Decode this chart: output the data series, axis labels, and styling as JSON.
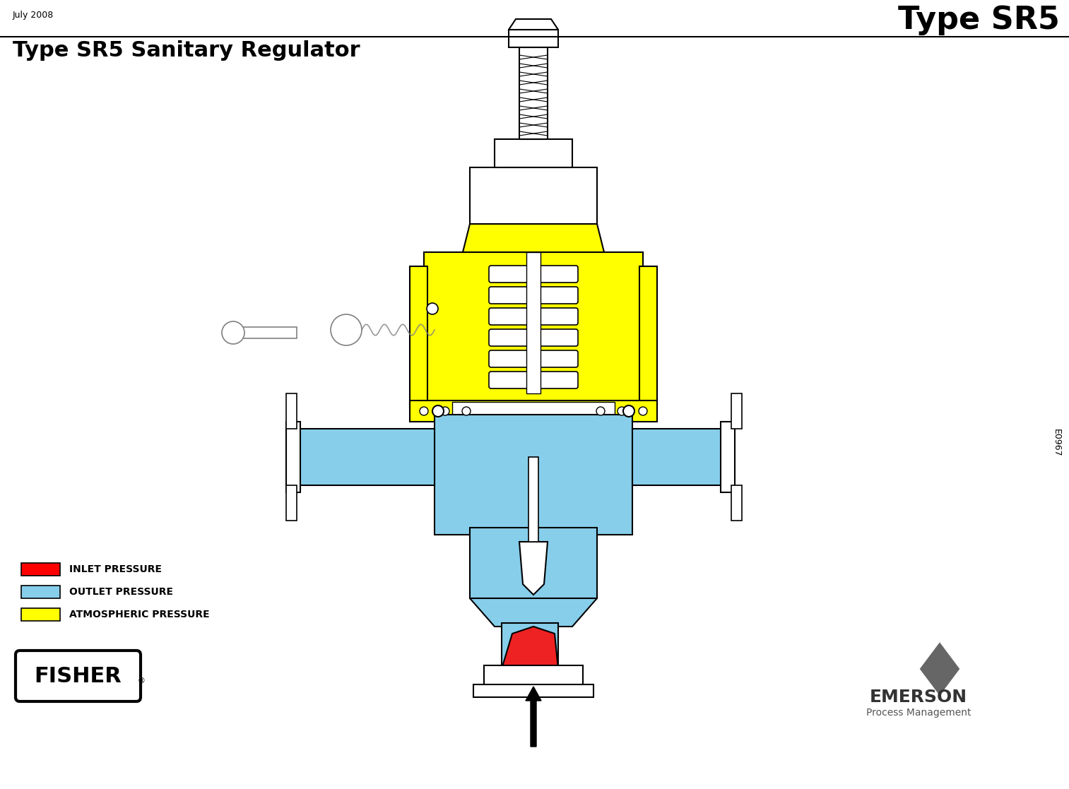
{
  "title_main": "Type SR5",
  "title_sub": "Type SR5 Sanitary Regulator",
  "date_text": "July 2008",
  "doc_number": "E0967",
  "legend": [
    {
      "label": "INLET PRESSURE",
      "color": "#FF0000"
    },
    {
      "label": "OUTLET PRESSURE",
      "color": "#87CEEB"
    },
    {
      "label": "ATMOSPHERIC PRESSURE",
      "color": "#FFFF00"
    }
  ],
  "bg_color": "#FFFFFF",
  "border_color": "#000000",
  "line_color": "#000000",
  "yellow_color": "#FFFF00",
  "blue_color": "#87CEEB",
  "red_color": "#EE2222",
  "gray_color": "#888888"
}
